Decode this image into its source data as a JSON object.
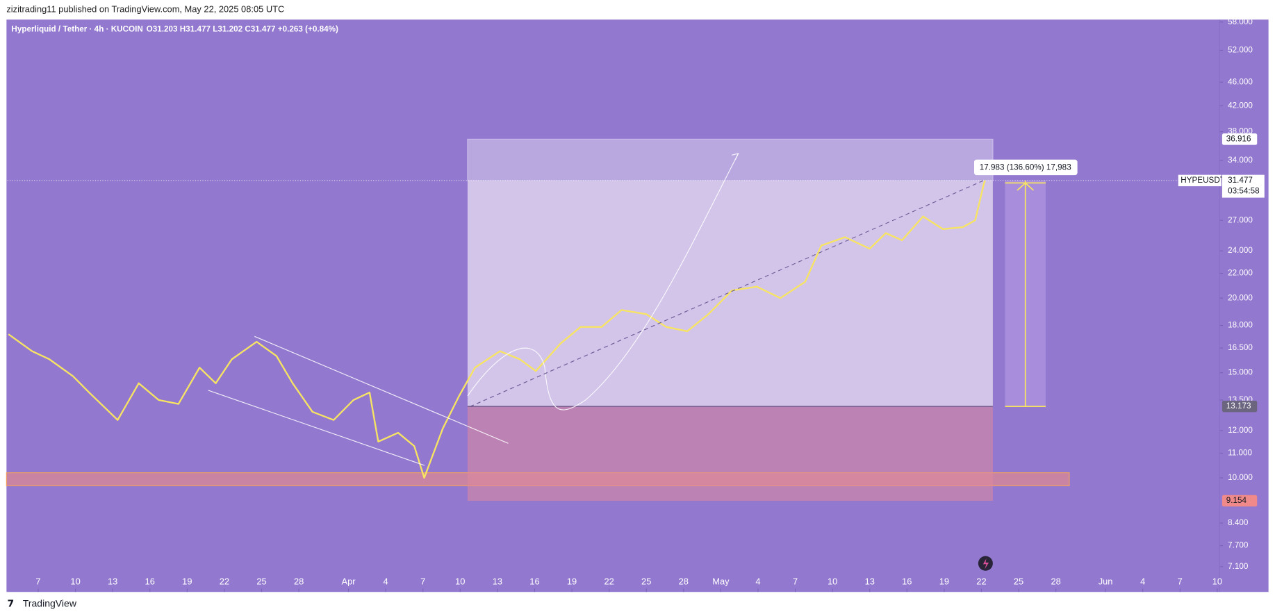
{
  "header": {
    "publisher": "zizitrading11 published on TradingView.com, May 22, 2025 08:05 UTC"
  },
  "chart_data": {
    "type": "line",
    "title": "Hyperliquid / Tether · 4h · KUCOIN",
    "ohlc_legend": "O31.203 H31.477 L31.202 C31.477 +0.263 (+0.84%)",
    "log_scale": true,
    "color": "#f7e463",
    "x": [
      -2.4,
      -0.5,
      0.9,
      2.8,
      4.1,
      6.4,
      8.1,
      9.7,
      11.3,
      13.0,
      14.3,
      15.6,
      17.6,
      19.2,
      20.5,
      22.1,
      23.8,
      25.4,
      26.7,
      27.4,
      29.0,
      30.3,
      31.1,
      32.6,
      33.9,
      35.2,
      37.2,
      38.8,
      40.1,
      42.1,
      43.7,
      45.4,
      47.0,
      49.0,
      50.6,
      52.3,
      54.0,
      55.9,
      57.9,
      59.8,
      61.8,
      63.1,
      65.0,
      67.0,
      68.3,
      69.6,
      71.3,
      72.9,
      74.5,
      75.5,
      76.2,
      76.3
    ],
    "values": [
      17.4,
      16.3,
      15.8,
      14.8,
      13.9,
      12.5,
      14.4,
      13.5,
      13.3,
      15.3,
      14.4,
      15.8,
      16.9,
      16.0,
      14.4,
      12.9,
      12.5,
      13.5,
      13.9,
      11.5,
      11.9,
      11.3,
      10.0,
      12.1,
      13.7,
      15.3,
      16.3,
      15.8,
      15.1,
      16.8,
      17.9,
      17.9,
      19.1,
      18.8,
      17.9,
      17.6,
      18.8,
      20.6,
      20.9,
      20.0,
      21.3,
      24.5,
      25.3,
      24.2,
      25.7,
      25.0,
      27.4,
      26.1,
      26.3,
      27.0,
      31.1,
      31.477
    ],
    "xlim": [
      -2.49,
      95.2
    ],
    "xticks": [
      {
        "value": 0,
        "label": "7"
      },
      {
        "value": 3,
        "label": "10"
      },
      {
        "value": 6,
        "label": "13"
      },
      {
        "value": 9,
        "label": "16"
      },
      {
        "value": 12,
        "label": "19"
      },
      {
        "value": 15,
        "label": "22"
      },
      {
        "value": 18,
        "label": "25"
      },
      {
        "value": 21,
        "label": "28"
      },
      {
        "value": 25,
        "label": "Apr"
      },
      {
        "value": 28,
        "label": "4"
      },
      {
        "value": 31,
        "label": "7"
      },
      {
        "value": 34,
        "label": "10"
      },
      {
        "value": 37,
        "label": "13"
      },
      {
        "value": 40,
        "label": "16"
      },
      {
        "value": 43,
        "label": "19"
      },
      {
        "value": 46,
        "label": "22"
      },
      {
        "value": 49,
        "label": "25"
      },
      {
        "value": 52,
        "label": "28"
      },
      {
        "value": 55,
        "label": "May"
      },
      {
        "value": 58,
        "label": "4"
      },
      {
        "value": 61,
        "label": "7"
      },
      {
        "value": 64,
        "label": "10"
      },
      {
        "value": 67,
        "label": "13"
      },
      {
        "value": 70,
        "label": "16"
      },
      {
        "value": 73,
        "label": "19"
      },
      {
        "value": 76,
        "label": "22"
      },
      {
        "value": 79,
        "label": "25"
      },
      {
        "value": 82,
        "label": "28"
      },
      {
        "value": 86,
        "label": "Jun"
      },
      {
        "value": 89,
        "label": "4"
      },
      {
        "value": 92,
        "label": "7"
      },
      {
        "value": 95,
        "label": "10"
      }
    ],
    "ylim": [
      6.44,
      58.55
    ],
    "yticks": [
      {
        "value": 58,
        "label": "58.000"
      },
      {
        "value": 52,
        "label": "52.000"
      },
      {
        "value": 46,
        "label": "46.000"
      },
      {
        "value": 42,
        "label": "42.000"
      },
      {
        "value": 38,
        "label": "38.000"
      },
      {
        "value": 34,
        "label": "34.000"
      },
      {
        "value": 27,
        "label": "27.000"
      },
      {
        "value": 24,
        "label": "24.000"
      },
      {
        "value": 22,
        "label": "22.000"
      },
      {
        "value": 20,
        "label": "20.000"
      },
      {
        "value": 18,
        "label": "18.000"
      },
      {
        "value": 16.5,
        "label": "16.500"
      },
      {
        "value": 15,
        "label": "15.000"
      },
      {
        "value": 13.5,
        "label": "13.500"
      },
      {
        "value": 12,
        "label": "12.000"
      },
      {
        "value": 11,
        "label": "11.000"
      },
      {
        "value": 10,
        "label": "10.000"
      },
      {
        "value": 8.4,
        "label": "8.400"
      },
      {
        "value": 7.7,
        "label": "7.700"
      },
      {
        "value": 7.1,
        "label": "7.100"
      }
    ],
    "symbol": "HYPEUSDT",
    "last_price": 31.477,
    "countdown": "03:54:58",
    "target_price": 36.916,
    "entry_price": 13.173,
    "stop_price": 9.154,
    "measure_label": "17.983 (136.60%) 17,983"
  },
  "footer": {
    "brand": "TradingView"
  }
}
